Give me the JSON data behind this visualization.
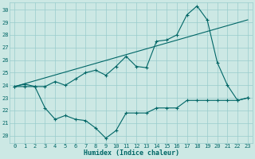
{
  "xlabel": "Humidex (Indice chaleur)",
  "bg_color": "#cce8e4",
  "grid_color": "#99cccc",
  "line_color": "#006666",
  "xlim": [
    -0.5,
    23.5
  ],
  "ylim": [
    19.4,
    30.6
  ],
  "xticks": [
    0,
    1,
    2,
    3,
    4,
    5,
    6,
    7,
    8,
    9,
    10,
    11,
    12,
    13,
    14,
    15,
    16,
    17,
    18,
    19,
    20,
    21,
    22,
    23
  ],
  "yticks": [
    20,
    21,
    22,
    23,
    24,
    25,
    26,
    27,
    28,
    29,
    30
  ],
  "line1_x": [
    0,
    1,
    2,
    3,
    4,
    5,
    6,
    7,
    8,
    9,
    10,
    11,
    12,
    13,
    14,
    15,
    16,
    17,
    18,
    19,
    20,
    21,
    22,
    23
  ],
  "line1_y": [
    23.9,
    24.1,
    23.9,
    23.9,
    24.3,
    24.0,
    24.5,
    25.0,
    25.2,
    24.8,
    25.5,
    26.3,
    25.5,
    25.4,
    27.5,
    27.6,
    28.0,
    29.6,
    30.3,
    29.2,
    25.8,
    24.0,
    22.8,
    23.0
  ],
  "line2_x": [
    0,
    1,
    2,
    3,
    4,
    5,
    6,
    7,
    8,
    9,
    10,
    11,
    12,
    13,
    14,
    15,
    16,
    17,
    18,
    19,
    20,
    21,
    22,
    23
  ],
  "line2_y": [
    23.9,
    23.9,
    23.9,
    22.2,
    21.3,
    21.6,
    21.3,
    21.2,
    20.6,
    19.8,
    20.4,
    21.8,
    21.8,
    21.8,
    22.2,
    22.2,
    22.2,
    22.8,
    22.8,
    22.8,
    22.8,
    22.8,
    22.8,
    23.0
  ],
  "line3_x": [
    0,
    23
  ],
  "line3_y": [
    23.9,
    29.2
  ]
}
